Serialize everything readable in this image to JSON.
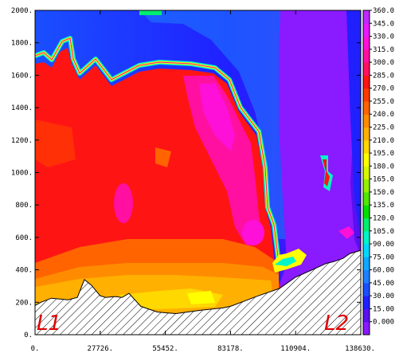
{
  "chart_data": {
    "type": "heatmap",
    "title": "",
    "xlabel": "",
    "ylabel": "",
    "xlim": [
      0,
      138630
    ],
    "ylim": [
      0,
      2000
    ],
    "x_tick_labels": [
      "0.",
      "27726.",
      "55452.",
      "83178.",
      "110904.",
      "138630."
    ],
    "y_tick_labels": [
      "0.",
      "200.",
      "400.",
      "600.",
      "800.",
      "1000.",
      "1200.",
      "1400.",
      "1600.",
      "1800.",
      "2000."
    ],
    "colorbar": {
      "min": 0,
      "max": 375,
      "step": 15,
      "labels": [
        "0.000",
        "15.00",
        "30.00",
        "45.00",
        "60.00",
        "75.00",
        "90.00",
        "105.0",
        "120.0",
        "135.0",
        "150.0",
        "165.0",
        "180.0",
        "195.0",
        "210.0",
        "225.0",
        "240.0",
        "255.0",
        "270.0",
        "285.0",
        "300.0",
        "315.0",
        "330.0",
        "345.0",
        "360.0"
      ],
      "colors": [
        "#8a1aff",
        "#5a10f0",
        "#2020ff",
        "#1a4fff",
        "#1e80ff",
        "#10a8ff",
        "#00d8ff",
        "#00f5c8",
        "#00ee70",
        "#00e000",
        "#50e800",
        "#96f000",
        "#d8f800",
        "#ffff00",
        "#ffd800",
        "#ffb000",
        "#ff8c00",
        "#ff6400",
        "#ff3c00",
        "#ff1414",
        "#ff1060",
        "#ff10a0",
        "#ff10d8",
        "#e818ff",
        "#c028ff"
      ]
    },
    "markers": [
      "L1",
      "L2"
    ],
    "terrain": [
      [
        0,
        180
      ],
      [
        2500,
        200
      ],
      [
        7000,
        225
      ],
      [
        14000,
        215
      ],
      [
        18000,
        230
      ],
      [
        21000,
        340
      ],
      [
        24000,
        305
      ],
      [
        27726,
        240
      ],
      [
        30000,
        230
      ],
      [
        34000,
        235
      ],
      [
        37000,
        230
      ],
      [
        40000,
        255
      ],
      [
        45000,
        175
      ],
      [
        52000,
        140
      ],
      [
        55452,
        135
      ],
      [
        60000,
        130
      ],
      [
        70000,
        150
      ],
      [
        80000,
        165
      ],
      [
        83178,
        175
      ],
      [
        95000,
        240
      ],
      [
        104000,
        285
      ],
      [
        110904,
        355
      ],
      [
        118000,
        400
      ],
      [
        124000,
        440
      ],
      [
        127000,
        450
      ],
      [
        131000,
        470
      ],
      [
        134000,
        500
      ],
      [
        138630,
        520
      ]
    ]
  }
}
